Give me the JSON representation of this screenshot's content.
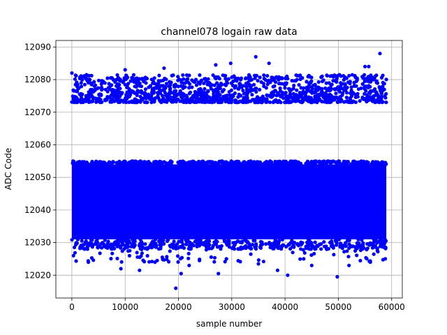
{
  "chart_data": {
    "type": "scatter",
    "title": "channel078 logain raw data",
    "xlabel": "sample number",
    "ylabel": "ADC Code",
    "xlim": [
      -3000,
      62000
    ],
    "ylim": [
      12013,
      12092
    ],
    "xticks": [
      0,
      10000,
      20000,
      30000,
      40000,
      50000,
      60000
    ],
    "xtick_labels": [
      "0",
      "10000",
      "20000",
      "30000",
      "40000",
      "50000",
      "60000"
    ],
    "yticks": [
      12020,
      12030,
      12040,
      12050,
      12060,
      12070,
      12080,
      12090
    ],
    "ytick_labels": [
      "12020",
      "12030",
      "12040",
      "12050",
      "12060",
      "12070",
      "12080",
      "12090"
    ],
    "grid": true,
    "marker_color": "#0000ff",
    "series": [
      {
        "name": "",
        "x_range": [
          0,
          59000
        ],
        "description_bands": [
          {
            "y_range": [
              12029.5,
              12055
            ],
            "density": "dense"
          },
          {
            "y_range": [
              12072.5,
              12081
            ],
            "density": "sparse"
          }
        ],
        "outliers": [
          {
            "x": 0,
            "y": 12082
          },
          {
            "x": 10000,
            "y": 12083
          },
          {
            "x": 17300,
            "y": 12083.5
          },
          {
            "x": 27000,
            "y": 12084.5
          },
          {
            "x": 29800,
            "y": 12085
          },
          {
            "x": 34500,
            "y": 12087
          },
          {
            "x": 37000,
            "y": 12085
          },
          {
            "x": 55000,
            "y": 12084
          },
          {
            "x": 55700,
            "y": 12084
          },
          {
            "x": 57800,
            "y": 12088
          },
          {
            "x": 19500,
            "y": 12016
          },
          {
            "x": 49800,
            "y": 12019.5
          },
          {
            "x": 20500,
            "y": 12020.5
          },
          {
            "x": 27500,
            "y": 12020.5
          },
          {
            "x": 40500,
            "y": 12020
          },
          {
            "x": 12700,
            "y": 12021.5
          },
          {
            "x": 38600,
            "y": 12021.5
          },
          {
            "x": 9200,
            "y": 12022
          },
          {
            "x": 22000,
            "y": 12023
          },
          {
            "x": 35000,
            "y": 12023.5
          },
          {
            "x": 45000,
            "y": 12023
          },
          {
            "x": 52000,
            "y": 12023
          },
          {
            "x": 3100,
            "y": 12024
          },
          {
            "x": 15600,
            "y": 12024
          },
          {
            "x": 29000,
            "y": 12025
          },
          {
            "x": 43500,
            "y": 12025
          },
          {
            "x": 56000,
            "y": 12024
          },
          {
            "x": 300,
            "y": 12026
          },
          {
            "x": 58800,
            "y": 12025
          }
        ]
      }
    ]
  }
}
